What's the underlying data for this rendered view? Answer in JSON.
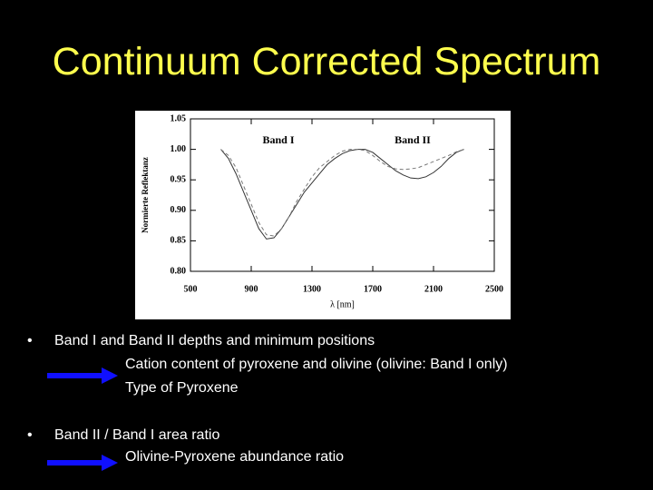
{
  "slide_title": "Continuum Corrected Spectrum",
  "chart_data": {
    "type": "line",
    "x_label": "λ [nm]",
    "y_label": "Normierte Reflektanz",
    "annotations": [
      "Band I",
      "Band II"
    ],
    "x": [
      700,
      750,
      800,
      850,
      900,
      950,
      1000,
      1050,
      1100,
      1150,
      1200,
      1250,
      1300,
      1350,
      1400,
      1450,
      1500,
      1550,
      1600,
      1650,
      1700,
      1750,
      1800,
      1850,
      1900,
      1950,
      2000,
      2050,
      2100,
      2150,
      2200,
      2250,
      2300
    ],
    "series": [
      {
        "color": "#333333",
        "dashed": false,
        "values": [
          1.0,
          0.985,
          0.96,
          0.93,
          0.9,
          0.87,
          0.853,
          0.855,
          0.87,
          0.89,
          0.91,
          0.93,
          0.945,
          0.96,
          0.975,
          0.985,
          0.993,
          0.998,
          1.0,
          1.0,
          0.995,
          0.985,
          0.975,
          0.965,
          0.958,
          0.953,
          0.952,
          0.955,
          0.962,
          0.972,
          0.985,
          0.995,
          1.0
        ]
      },
      {
        "color": "#777777",
        "dashed": true,
        "values": [
          1.0,
          0.99,
          0.97,
          0.94,
          0.91,
          0.88,
          0.86,
          0.858,
          0.87,
          0.89,
          0.915,
          0.935,
          0.955,
          0.97,
          0.98,
          0.99,
          0.997,
          1.0,
          1.0,
          0.998,
          0.99,
          0.98,
          0.972,
          0.968,
          0.967,
          0.968,
          0.97,
          0.975,
          0.98,
          0.985,
          0.99,
          0.996,
          1.0
        ]
      }
    ],
    "xlim": [
      500,
      2500
    ],
    "xticks": [
      500,
      900,
      1300,
      1700,
      2100,
      2500
    ],
    "ylim": [
      0.8,
      1.05
    ],
    "yticks": [
      {
        "value": 0.8,
        "label": "0.80"
      },
      0.85,
      {
        "value": 0.9,
        "label": "0.90"
      },
      0.95,
      {
        "value": 1,
        "label": "1.00"
      },
      1.05
    ],
    "grid": false
  },
  "bullets": [
    {
      "text": "Band I and Band II depths and minimum positions",
      "subitems": [
        "Cation content of pyroxene and olivine (olivine: Band I only)",
        "Type of Pyroxene"
      ]
    },
    {
      "text": "Band II / Band I area ratio",
      "subitems": [
        "Olivine-Pyroxene abundance ratio"
      ]
    }
  ]
}
